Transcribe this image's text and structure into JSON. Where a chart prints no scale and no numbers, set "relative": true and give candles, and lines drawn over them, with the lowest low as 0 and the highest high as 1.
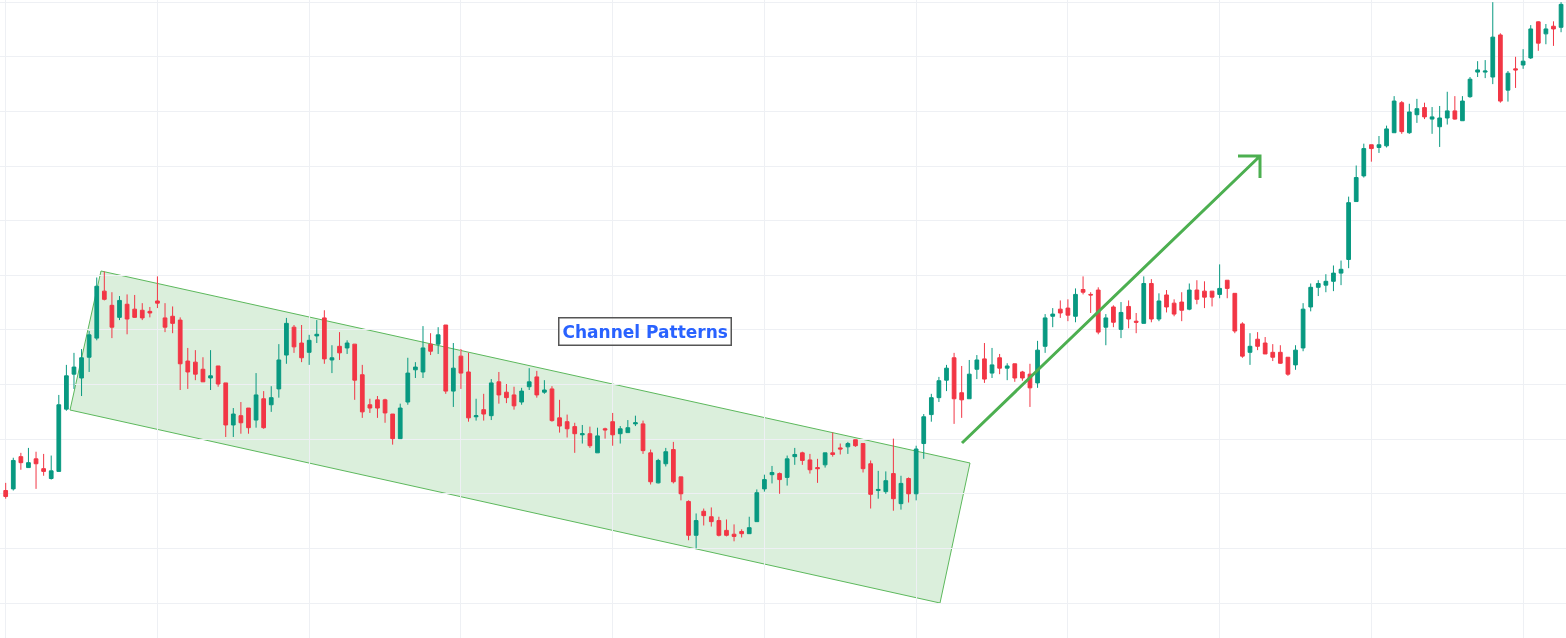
{
  "chart_data": {
    "type": "candlestick",
    "relative": true,
    "grid": true,
    "annotations": [
      "Channel Patterns"
    ],
    "categories": [
      null,
      null,
      null,
      null,
      null,
      null,
      null,
      null,
      null,
      null,
      null,
      null,
      null,
      null,
      null,
      null,
      null,
      null,
      null,
      null,
      null,
      null,
      null,
      null,
      null,
      null,
      null,
      null,
      null,
      null,
      null,
      null,
      null,
      null,
      null,
      null,
      null,
      null,
      null,
      null,
      null,
      null,
      null,
      null,
      null,
      null,
      null,
      null,
      null,
      null,
      null,
      null,
      null,
      null,
      null,
      null,
      null,
      null,
      null,
      null,
      null,
      null,
      null,
      null,
      null,
      null,
      null,
      null,
      null,
      null,
      null,
      null,
      null,
      null,
      null,
      null,
      null,
      null,
      null,
      null,
      null,
      null,
      null,
      null,
      null,
      null,
      null,
      null,
      null,
      null,
      null,
      null,
      null,
      null,
      null,
      null,
      null,
      null,
      null,
      null,
      null,
      null,
      null,
      null,
      null,
      null,
      null,
      null,
      null,
      null,
      null,
      null,
      null,
      null,
      null,
      null,
      null,
      null,
      null,
      null,
      null,
      null,
      null,
      null,
      null,
      null,
      null,
      null,
      null,
      null,
      null,
      null,
      null,
      null,
      null,
      null,
      null,
      null,
      null,
      null,
      null,
      null,
      null,
      null,
      null,
      null,
      null,
      null,
      null,
      null,
      null,
      null,
      null,
      null,
      null,
      null,
      null,
      null,
      null,
      null,
      null,
      null,
      null,
      null,
      null,
      null,
      null,
      null,
      null,
      null,
      null,
      null,
      null,
      null,
      null,
      null,
      null,
      null,
      null,
      null,
      null,
      null,
      null,
      null,
      null,
      null,
      null,
      null,
      null,
      null,
      null,
      null,
      null,
      null,
      null,
      null,
      null,
      null,
      null,
      null,
      null,
      null,
      null,
      null,
      null,
      null
    ],
    "ohlc": [
      [
        0.106,
        0.12,
        0.091,
        0.095
      ],
      [
        0.109,
        0.166,
        0.106,
        0.161
      ],
      [
        0.168,
        0.175,
        0.144,
        0.157
      ],
      [
        0.148,
        0.184,
        0.148,
        0.157
      ],
      [
        0.164,
        0.177,
        0.109,
        0.155
      ],
      [
        0.146,
        0.173,
        0.133,
        0.141
      ],
      [
        0.128,
        0.17,
        0.126,
        0.142
      ],
      [
        0.141,
        0.281,
        0.141,
        0.263
      ],
      [
        0.255,
        0.336,
        0.252,
        0.316
      ],
      [
        0.319,
        0.358,
        0.292,
        0.332
      ],
      [
        0.312,
        0.365,
        0.279,
        0.349
      ],
      [
        0.35,
        0.398,
        0.323,
        0.391
      ],
      [
        0.385,
        0.496,
        0.381,
        0.48
      ],
      [
        0.471,
        0.507,
        0.454,
        0.456
      ],
      [
        0.445,
        0.469,
        0.385,
        0.405
      ],
      [
        0.423,
        0.462,
        0.418,
        0.454
      ],
      [
        0.447,
        0.465,
        0.392,
        0.42
      ],
      [
        0.438,
        0.464,
        0.422,
        0.423
      ],
      [
        0.436,
        0.449,
        0.418,
        0.422
      ],
      [
        0.434,
        0.442,
        0.423,
        0.431
      ],
      [
        0.453,
        0.498,
        0.44,
        0.449
      ],
      [
        0.422,
        0.449,
        0.396,
        0.405
      ],
      [
        0.425,
        0.443,
        0.394,
        0.412
      ],
      [
        0.418,
        0.423,
        0.29,
        0.338
      ],
      [
        0.343,
        0.367,
        0.292,
        0.323
      ],
      [
        0.341,
        0.363,
        0.308,
        0.319
      ],
      [
        0.328,
        0.35,
        0.305,
        0.305
      ],
      [
        0.312,
        0.363,
        0.29,
        0.316
      ],
      [
        0.334,
        0.334,
        0.296,
        0.301
      ],
      [
        0.303,
        0.303,
        0.204,
        0.226
      ],
      [
        0.226,
        0.257,
        0.204,
        0.246
      ],
      [
        0.243,
        0.268,
        0.21,
        0.23
      ],
      [
        0.257,
        0.257,
        0.21,
        0.221
      ],
      [
        0.235,
        0.321,
        0.221,
        0.281
      ],
      [
        0.274,
        0.288,
        0.219,
        0.221
      ],
      [
        0.263,
        0.297,
        0.25,
        0.276
      ],
      [
        0.292,
        0.374,
        0.276,
        0.345
      ],
      [
        0.354,
        0.422,
        0.338,
        0.412
      ],
      [
        0.405,
        0.409,
        0.358,
        0.369
      ],
      [
        0.376,
        0.409,
        0.341,
        0.349
      ],
      [
        0.359,
        0.391,
        0.336,
        0.381
      ],
      [
        0.389,
        0.418,
        0.376,
        0.392
      ],
      [
        0.422,
        0.436,
        0.338,
        0.347
      ],
      [
        0.345,
        0.372,
        0.321,
        0.349
      ],
      [
        0.37,
        0.396,
        0.345,
        0.358
      ],
      [
        0.367,
        0.381,
        0.356,
        0.376
      ],
      [
        0.374,
        0.374,
        0.272,
        0.308
      ],
      [
        0.318,
        0.336,
        0.239,
        0.25
      ],
      [
        0.263,
        0.274,
        0.248,
        0.257
      ],
      [
        0.272,
        0.279,
        0.239,
        0.257
      ],
      [
        0.272,
        0.274,
        0.23,
        0.248
      ],
      [
        0.246,
        0.246,
        0.19,
        0.201
      ],
      [
        0.201,
        0.265,
        0.201,
        0.257
      ],
      [
        0.268,
        0.349,
        0.263,
        0.321
      ],
      [
        0.327,
        0.341,
        0.312,
        0.332
      ],
      [
        0.323,
        0.407,
        0.312,
        0.367
      ],
      [
        0.374,
        0.394,
        0.354,
        0.361
      ],
      [
        0.374,
        0.405,
        0.356,
        0.391
      ],
      [
        0.409,
        0.409,
        0.283,
        0.288
      ],
      [
        0.288,
        0.376,
        0.259,
        0.33
      ],
      [
        0.352,
        0.365,
        0.292,
        0.321
      ],
      [
        0.323,
        0.358,
        0.232,
        0.239
      ],
      [
        0.241,
        0.274,
        0.234,
        0.243
      ],
      [
        0.254,
        0.283,
        0.234,
        0.246
      ],
      [
        0.243,
        0.31,
        0.235,
        0.303
      ],
      [
        0.305,
        0.323,
        0.265,
        0.281
      ],
      [
        0.286,
        0.301,
        0.266,
        0.276
      ],
      [
        0.281,
        0.296,
        0.254,
        0.261
      ],
      [
        0.268,
        0.294,
        0.263,
        0.288
      ],
      [
        0.296,
        0.33,
        0.29,
        0.305
      ],
      [
        0.314,
        0.325,
        0.276,
        0.281
      ],
      [
        0.286,
        0.308,
        0.283,
        0.29
      ],
      [
        0.292,
        0.297,
        0.232,
        0.234
      ],
      [
        0.239,
        0.272,
        0.212,
        0.224
      ],
      [
        0.232,
        0.245,
        0.203,
        0.219
      ],
      [
        0.223,
        0.23,
        0.175,
        0.21
      ],
      [
        0.208,
        0.226,
        0.192,
        0.21
      ],
      [
        0.21,
        0.223,
        0.184,
        0.188
      ],
      [
        0.175,
        0.221,
        0.175,
        0.206
      ],
      [
        0.219,
        0.221,
        0.201,
        0.217
      ],
      [
        0.232,
        0.248,
        0.188,
        0.208
      ],
      [
        0.21,
        0.224,
        0.192,
        0.219
      ],
      [
        0.212,
        0.235,
        0.212,
        0.221
      ],
      [
        0.228,
        0.243,
        0.224,
        0.23
      ],
      [
        0.228,
        0.234,
        0.173,
        0.179
      ],
      [
        0.175,
        0.181,
        0.117,
        0.122
      ],
      [
        0.12,
        0.164,
        0.119,
        0.161
      ],
      [
        0.155,
        0.184,
        0.15,
        0.177
      ],
      [
        0.181,
        0.195,
        0.119,
        0.122
      ],
      [
        0.131,
        0.131,
        0.088,
        0.1
      ],
      [
        0.086,
        0.088,
        0.015,
        0.024
      ],
      [
        0.024,
        0.064,
        0,
        0.051
      ],
      [
        0.068,
        0.073,
        0.042,
        0.06
      ],
      [
        0.058,
        0.075,
        0.04,
        0.049
      ],
      [
        0.051,
        0.058,
        0.022,
        0.024
      ],
      [
        0.033,
        0.053,
        0.022,
        0.024
      ],
      [
        0.026,
        0.044,
        0.013,
        0.022
      ],
      [
        0.031,
        0.035,
        0.02,
        0.027
      ],
      [
        0.027,
        0.058,
        0.027,
        0.038
      ],
      [
        0.049,
        0.108,
        0.049,
        0.102
      ],
      [
        0.109,
        0.135,
        0.104,
        0.126
      ],
      [
        0.135,
        0.151,
        0.119,
        0.139
      ],
      [
        0.137,
        0.139,
        0.1,
        0.126
      ],
      [
        0.13,
        0.17,
        0.115,
        0.164
      ],
      [
        0.168,
        0.184,
        0.153,
        0.172
      ],
      [
        0.175,
        0.177,
        0.153,
        0.161
      ],
      [
        0.162,
        0.173,
        0.137,
        0.144
      ],
      [
        0.148,
        0.164,
        0.12,
        0.146
      ],
      [
        0.153,
        0.175,
        0.148,
        0.175
      ],
      [
        0.175,
        0.212,
        0.168,
        0.172
      ],
      [
        0.184,
        0.192,
        0.172,
        0.182
      ],
      [
        0.186,
        0.195,
        0.173,
        0.192
      ],
      [
        0.199,
        0.199,
        0.186,
        0.188
      ],
      [
        0.192,
        0.192,
        0.139,
        0.146
      ],
      [
        0.155,
        0.161,
        0.073,
        0.099
      ],
      [
        0.106,
        0.142,
        0.091,
        0.108
      ],
      [
        0.104,
        0.141,
        0.1,
        0.124
      ],
      [
        0.137,
        0.201,
        0.069,
        0.091
      ],
      [
        0.082,
        0.133,
        0.071,
        0.119
      ],
      [
        0.128,
        0.13,
        0.084,
        0.1
      ],
      [
        0.1,
        0.188,
        0.088,
        0.182
      ],
      [
        0.192,
        0.246,
        0.164,
        0.241
      ],
      [
        0.245,
        0.283,
        0.232,
        0.276
      ],
      [
        0.276,
        0.314,
        0.268,
        0.307
      ],
      [
        0.308,
        0.336,
        0.288,
        0.33
      ],
      [
        0.349,
        0.358,
        0.228,
        0.274
      ],
      [
        0.285,
        0.334,
        0.239,
        0.272
      ],
      [
        0.274,
        0.345,
        0.274,
        0.319
      ],
      [
        0.328,
        0.354,
        0.31,
        0.345
      ],
      [
        0.347,
        0.376,
        0.303,
        0.31
      ],
      [
        0.321,
        0.367,
        0.312,
        0.336
      ],
      [
        0.349,
        0.356,
        0.319,
        0.33
      ],
      [
        0.33,
        0.339,
        0.308,
        0.334
      ],
      [
        0.338,
        0.338,
        0.305,
        0.312
      ],
      [
        0.323,
        0.325,
        0.307,
        0.312
      ],
      [
        0.319,
        0.338,
        0.259,
        0.294
      ],
      [
        0.303,
        0.38,
        0.294,
        0.363
      ],
      [
        0.37,
        0.429,
        0.358,
        0.422
      ],
      [
        0.425,
        0.44,
        0.405,
        0.429
      ],
      [
        0.438,
        0.454,
        0.422,
        0.431
      ],
      [
        0.44,
        0.456,
        0.416,
        0.427
      ],
      [
        0.425,
        0.476,
        0.414,
        0.465
      ],
      [
        0.474,
        0.498,
        0.465,
        0.469
      ],
      [
        0.465,
        0.469,
        0.431,
        0.464
      ],
      [
        0.473,
        0.478,
        0.392,
        0.396
      ],
      [
        0.405,
        0.429,
        0.372,
        0.422
      ],
      [
        0.442,
        0.445,
        0.405,
        0.414
      ],
      [
        0.401,
        0.451,
        0.385,
        0.432
      ],
      [
        0.443,
        0.454,
        0.403,
        0.42
      ],
      [
        0.416,
        0.431,
        0.394,
        0.414
      ],
      [
        0.412,
        0.498,
        0.412,
        0.485
      ],
      [
        0.485,
        0.493,
        0.414,
        0.42
      ],
      [
        0.42,
        0.467,
        0.416,
        0.453
      ],
      [
        0.464,
        0.473,
        0.432,
        0.442
      ],
      [
        0.449,
        0.456,
        0.425,
        0.429
      ],
      [
        0.451,
        0.469,
        0.416,
        0.436
      ],
      [
        0.438,
        0.485,
        0.436,
        0.473
      ],
      [
        0.473,
        0.491,
        0.447,
        0.456
      ],
      [
        0.471,
        0.489,
        0.44,
        0.46
      ],
      [
        0.471,
        0.471,
        0.443,
        0.46
      ],
      [
        0.465,
        0.52,
        0.458,
        0.476
      ],
      [
        0.491,
        0.491,
        0.458,
        0.476
      ],
      [
        0.467,
        0.467,
        0.394,
        0.398
      ],
      [
        0.411,
        0.414,
        0.349,
        0.352
      ],
      [
        0.359,
        0.394,
        0.336,
        0.37
      ],
      [
        0.383,
        0.396,
        0.363,
        0.37
      ],
      [
        0.376,
        0.387,
        0.356,
        0.356
      ],
      [
        0.359,
        0.374,
        0.343,
        0.35
      ],
      [
        0.359,
        0.372,
        0.338,
        0.339
      ],
      [
        0.35,
        0.35,
        0.316,
        0.319
      ],
      [
        0.336,
        0.372,
        0.327,
        0.363
      ],
      [
        0.367,
        0.449,
        0.361,
        0.438
      ],
      [
        0.442,
        0.485,
        0.434,
        0.478
      ],
      [
        0.478,
        0.491,
        0.462,
        0.485
      ],
      [
        0.482,
        0.502,
        0.469,
        0.489
      ],
      [
        0.489,
        0.518,
        0.471,
        0.504
      ],
      [
        0.504,
        0.527,
        0.482,
        0.511
      ],
      [
        0.529,
        0.644,
        0.513,
        0.633
      ],
      [
        0.635,
        0.701,
        0.635,
        0.679
      ],
      [
        0.682,
        0.741,
        0.679,
        0.732
      ],
      [
        0.739,
        0.739,
        0.708,
        0.732
      ],
      [
        0.734,
        0.755,
        0.724,
        0.739
      ],
      [
        0.737,
        0.774,
        0.734,
        0.768
      ],
      [
        0.761,
        0.828,
        0.761,
        0.819
      ],
      [
        0.816,
        0.819,
        0.759,
        0.763
      ],
      [
        0.761,
        0.814,
        0.759,
        0.799
      ],
      [
        0.794,
        0.823,
        0.779,
        0.805
      ],
      [
        0.807,
        0.816,
        0.786,
        0.79
      ],
      [
        0.786,
        0.808,
        0.759,
        0.79
      ],
      [
        0.772,
        0.81,
        0.735,
        0.788
      ],
      [
        0.788,
        0.836,
        0.776,
        0.801
      ],
      [
        0.801,
        0.828,
        0.785,
        0.786
      ],
      [
        0.783,
        0.828,
        0.783,
        0.819
      ],
      [
        0.827,
        0.863,
        0.825,
        0.859
      ],
      [
        0.872,
        0.892,
        0.863,
        0.876
      ],
      [
        0.872,
        0.894,
        0.861,
        0.874
      ],
      [
        0.863,
        1,
        0.85,
        0.936
      ],
      [
        0.94,
        0.943,
        0.816,
        0.819
      ],
      [
        0.839,
        0.874,
        0.818,
        0.87
      ],
      [
        0.878,
        0.9,
        0.843,
        0.876
      ],
      [
        0.885,
        0.914,
        0.878,
        0.892
      ],
      [
        0.898,
        0.958,
        0.896,
        0.951
      ],
      [
        0.964,
        0.965,
        0.911,
        0.925
      ],
      [
        0.942,
        0.96,
        0.923,
        0.951
      ],
      [
        0.956,
        0.965,
        0.92,
        0.951
      ],
      [
        0.954,
        1,
        0.945,
        0.996
      ]
    ]
  }
}
